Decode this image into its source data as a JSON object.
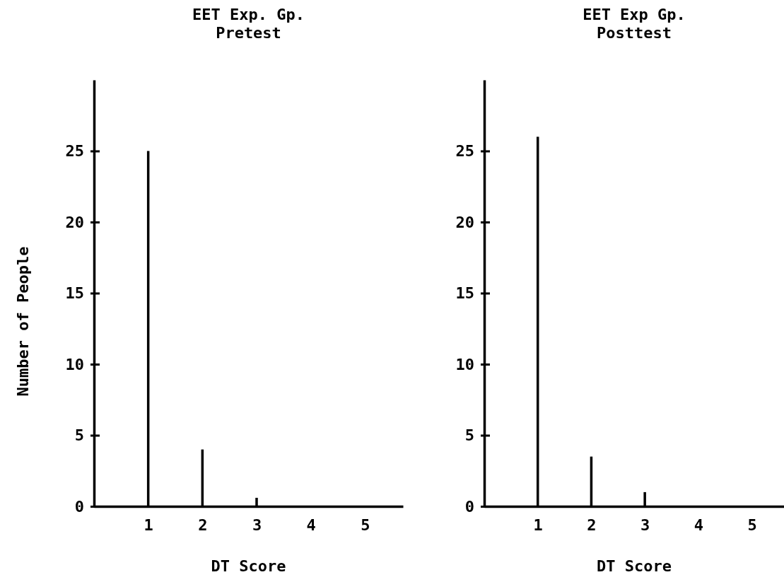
{
  "chart_data": [
    {
      "type": "bar",
      "title": "EET Exp. Gp.\nPretest",
      "xlabel": "DT Score",
      "ylabel": "Number of People",
      "x": [
        1,
        2,
        3
      ],
      "values": [
        25,
        4,
        0.6
      ],
      "color": "#000000",
      "xlim": [
        0,
        5.7
      ],
      "xticks": [
        1,
        2,
        3,
        4,
        5
      ],
      "ylim": [
        0,
        30
      ],
      "yticks": [
        0,
        5,
        10,
        15,
        20,
        25
      ]
    },
    {
      "type": "bar",
      "title": "EET Exp Gp.\nPosttest",
      "xlabel": "DT Score",
      "x": [
        1,
        2,
        3
      ],
      "values": [
        26,
        3.5,
        1
      ],
      "color": "#000000",
      "xlim": [
        0,
        5.6
      ],
      "xticks": [
        1,
        2,
        3,
        4,
        5
      ],
      "ylim": [
        0,
        30
      ],
      "yticks": [
        0,
        5,
        10,
        15,
        20,
        25
      ]
    }
  ]
}
